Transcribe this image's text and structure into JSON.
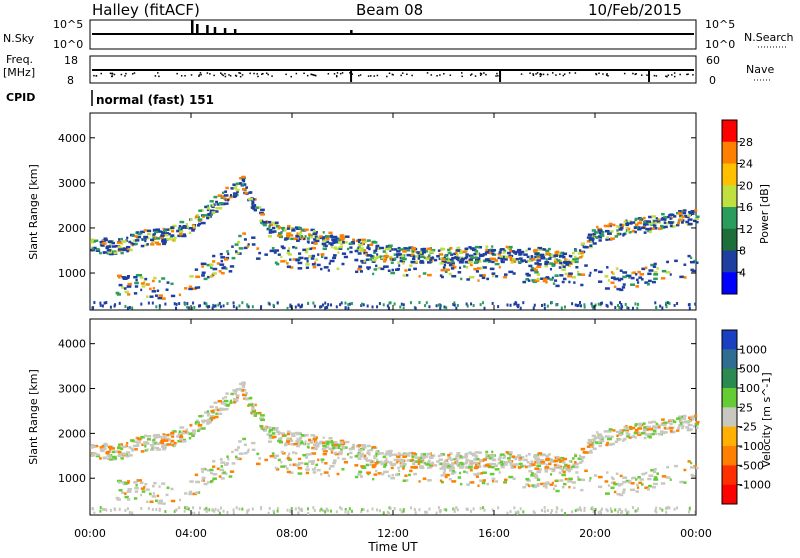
{
  "header": {
    "station": "Halley (fitACF)",
    "beam": "Beam 08",
    "date": "10/Feb/2015"
  },
  "top_panels": {
    "nsky_label": "N.Sky",
    "nsearch_label": "N.Search",
    "nsky_ticks": [
      "10^5",
      "10^0"
    ],
    "nsearch_ticks": [
      "10^5",
      "10^0"
    ],
    "freq_label_line1": "Freq.",
    "freq_label_line2": "[MHz]",
    "freq_ticks": [
      "18",
      "8"
    ],
    "nave_label": "Nave",
    "nave_ticks": [
      "60",
      "0"
    ],
    "cpid_label": "CPID",
    "cpid_value": "normal (fast) 151"
  },
  "chart_data": [
    {
      "type": "heatmap",
      "name": "power",
      "ylabel": "Slant Range [km]",
      "yticks": [
        "4000",
        "3000",
        "2000",
        "1000"
      ],
      "ylim": [
        180,
        4550
      ],
      "colorbar_label": "Power [dB]",
      "colorbar_ticks": [
        "28",
        "24",
        "20",
        "16",
        "12",
        "8",
        "4"
      ],
      "colorbar_colors": [
        "#ff0000",
        "#ff7f00",
        "#ffc000",
        "#c0e040",
        "#2a9d5c",
        "#1e6e3a",
        "#1f3fa0",
        "#0000ff"
      ]
    },
    {
      "type": "heatmap",
      "name": "velocity",
      "ylabel": "Slant Range [km]",
      "yticks": [
        "4000",
        "3000",
        "2000",
        "1000"
      ],
      "ylim": [
        180,
        4550
      ],
      "xlabel": "Time UT",
      "xticks": [
        "00:00",
        "04:00",
        "08:00",
        "12:00",
        "16:00",
        "20:00",
        "00:00"
      ],
      "xlim": [
        0,
        24
      ],
      "colorbar_label": "Velocity [m s^-1]",
      "colorbar_ticks": [
        "1000",
        "500",
        "100",
        "25",
        "-25",
        "-100",
        "-500",
        "-1000"
      ],
      "colorbar_colors": [
        "#1a3fc0",
        "#2f6e90",
        "#2a8a50",
        "#66cc33",
        "#c8c8c0",
        "#ffb000",
        "#ff7f00",
        "#ff3000",
        "#ff0000"
      ]
    }
  ]
}
